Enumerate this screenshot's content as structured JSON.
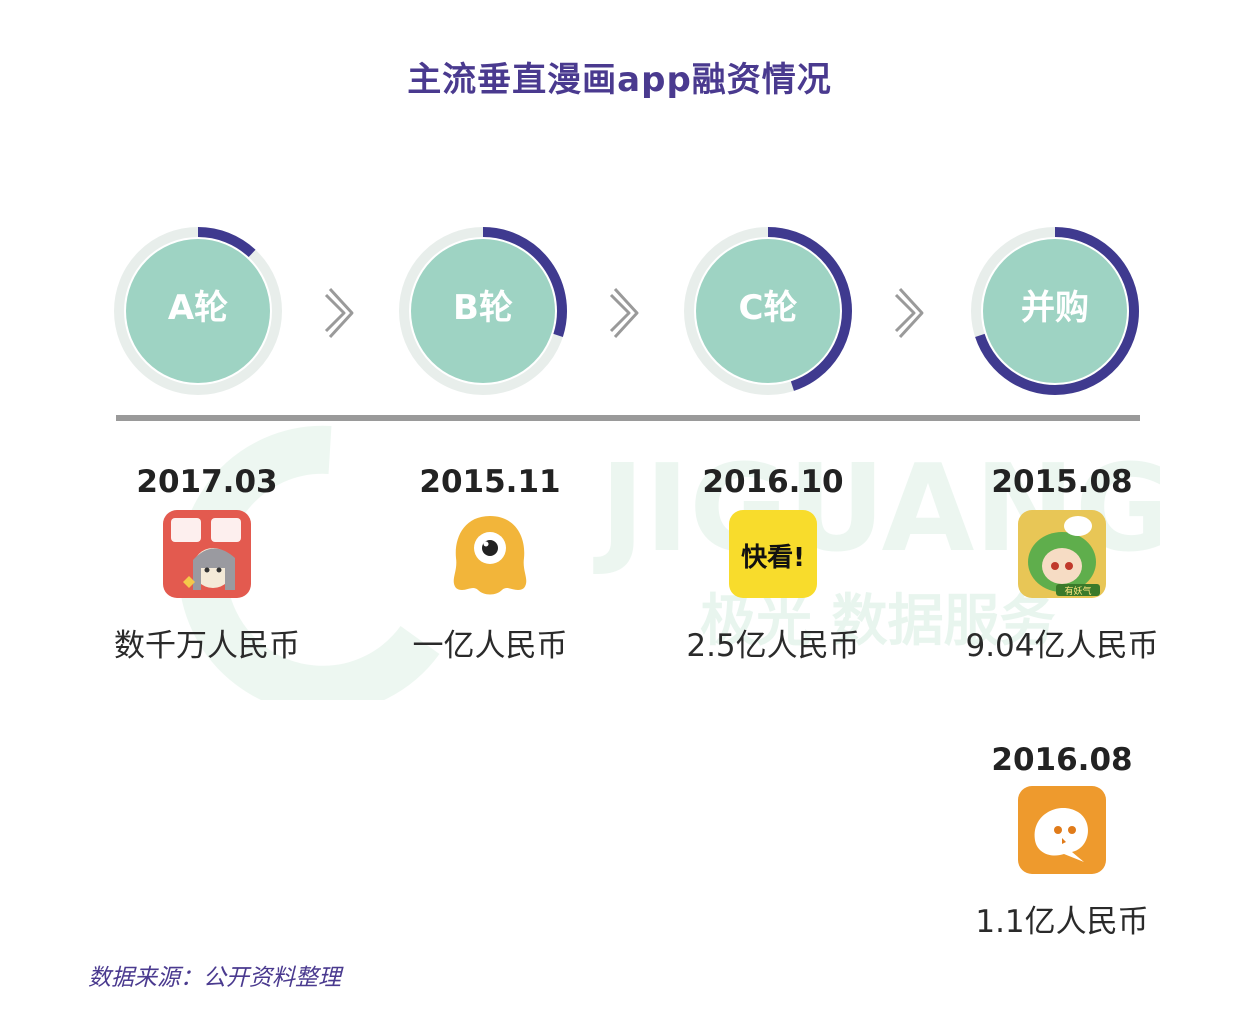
{
  "title": "主流垂直漫画app融资情况",
  "stages": [
    {
      "label": "A轮",
      "progress": 0.12
    },
    {
      "label": "B轮",
      "progress": 0.3
    },
    {
      "label": "C轮",
      "progress": 0.45
    },
    {
      "label": "并购",
      "progress": 0.7
    }
  ],
  "deals": [
    {
      "date": "2017.03",
      "app_icon": "manman-app-icon",
      "amount": "数千万人民币"
    },
    {
      "date": "2015.11",
      "app_icon": "yellow-monster-app-icon",
      "amount": "一亿人民币"
    },
    {
      "date": "2016.10",
      "app_icon": "kuaikan-app-icon",
      "amount": "2.5亿人民币",
      "icon_text": "快看!"
    },
    {
      "date": "2015.08",
      "app_icon": "green-hair-girl-app-icon",
      "amount": "9.04亿人民币",
      "icon_text": "有妖气"
    },
    {
      "date": "2016.08",
      "app_icon": "orange-chick-app-icon",
      "amount": "1.1亿人民币"
    }
  ],
  "watermark": {
    "text_en": "JIGUANG",
    "text_cn": "极光 数据服务"
  },
  "source": "数据来源：公开资料整理",
  "colors": {
    "title": "#4a3a8f",
    "circle_fill": "#9ed3c3",
    "ring": "#3f3a8f",
    "halo": "#e8eeeb",
    "timeline": "#9a9a9a"
  }
}
